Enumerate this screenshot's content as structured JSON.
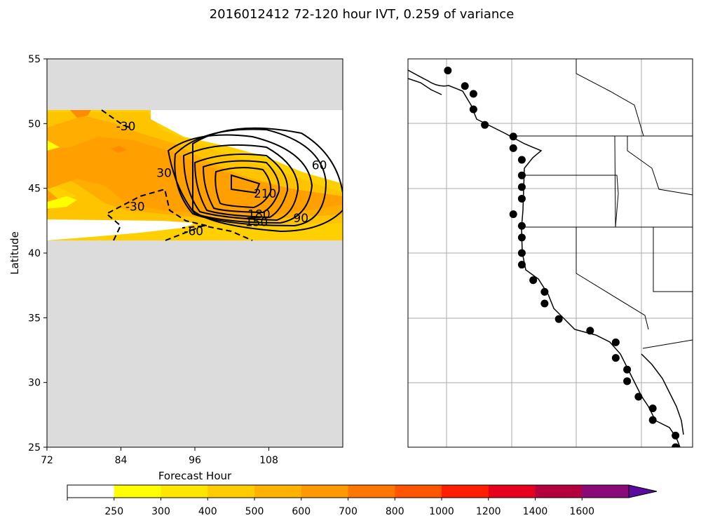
{
  "title": "2016012412 72-120 hour IVT, 0.259 of variance",
  "chart_data": [
    {
      "type": "heatmap",
      "panel": "left",
      "xlabel": "Forecast Hour",
      "ylabel": "Latitude",
      "xlim": [
        72,
        120
      ],
      "ylim": [
        25,
        55
      ],
      "xticks": [
        "72",
        "84",
        "96",
        "108"
      ],
      "xtick_values": [
        72,
        84,
        96,
        108
      ],
      "yticks": [
        "25",
        "30",
        "35",
        "40",
        "45",
        "50",
        "55"
      ],
      "ytick_values": [
        25,
        30,
        35,
        40,
        45,
        50,
        55
      ],
      "data_lat_range": [
        41,
        51
      ],
      "filled_field_note": "IVT shaded, mostly 250-600",
      "contour_labels": [
        {
          "text": "-30",
          "x": 84.8,
          "y": 49.8
        },
        {
          "text": "30",
          "x": 91.0,
          "y": 46.2
        },
        {
          "text": "-30",
          "x": 86.3,
          "y": 43.6
        },
        {
          "text": "-60",
          "x": 95.8,
          "y": 41.7
        },
        {
          "text": "60",
          "x": 116.2,
          "y": 46.8
        },
        {
          "text": "210",
          "x": 107.4,
          "y": 44.6
        },
        {
          "text": "180",
          "x": 106.4,
          "y": 43.0
        },
        {
          "text": "150",
          "x": 106.0,
          "y": 42.4
        },
        {
          "text": "90",
          "x": 113.2,
          "y": 42.7
        }
      ]
    },
    {
      "type": "scatter",
      "panel": "right",
      "description_points": "coastal stations",
      "grid": true,
      "points": [
        {
          "x": 0.14,
          "y": 0.97
        },
        {
          "x": 0.2,
          "y": 0.93
        },
        {
          "x": 0.23,
          "y": 0.91
        },
        {
          "x": 0.23,
          "y": 0.87
        },
        {
          "x": 0.27,
          "y": 0.83
        },
        {
          "x": 0.37,
          "y": 0.8
        },
        {
          "x": 0.37,
          "y": 0.77
        },
        {
          "x": 0.4,
          "y": 0.74
        },
        {
          "x": 0.4,
          "y": 0.7
        },
        {
          "x": 0.4,
          "y": 0.67
        },
        {
          "x": 0.4,
          "y": 0.64
        },
        {
          "x": 0.37,
          "y": 0.6
        },
        {
          "x": 0.4,
          "y": 0.57
        },
        {
          "x": 0.4,
          "y": 0.54
        },
        {
          "x": 0.4,
          "y": 0.5
        },
        {
          "x": 0.4,
          "y": 0.47
        },
        {
          "x": 0.44,
          "y": 0.43
        },
        {
          "x": 0.48,
          "y": 0.4
        },
        {
          "x": 0.48,
          "y": 0.37
        },
        {
          "x": 0.53,
          "y": 0.33
        },
        {
          "x": 0.64,
          "y": 0.3
        },
        {
          "x": 0.73,
          "y": 0.27
        },
        {
          "x": 0.73,
          "y": 0.23
        },
        {
          "x": 0.77,
          "y": 0.2
        },
        {
          "x": 0.77,
          "y": 0.17
        },
        {
          "x": 0.81,
          "y": 0.13
        },
        {
          "x": 0.86,
          "y": 0.1
        },
        {
          "x": 0.86,
          "y": 0.07
        },
        {
          "x": 0.94,
          "y": 0.03
        },
        {
          "x": 0.94,
          "y": 0.0
        }
      ]
    }
  ],
  "colorbar": {
    "ticks": [
      "250",
      "300",
      "400",
      "500",
      "600",
      "700",
      "800",
      "1000",
      "1200",
      "1400",
      "1600"
    ],
    "colors": [
      "#ffffff",
      "#ffff00",
      "#ffe600",
      "#ffcc00",
      "#ffb300",
      "#ff9900",
      "#ff7700",
      "#ff5500",
      "#ff1f00",
      "#e8001f",
      "#b4003c",
      "#8a0a7a",
      "#5a0a9c"
    ]
  }
}
